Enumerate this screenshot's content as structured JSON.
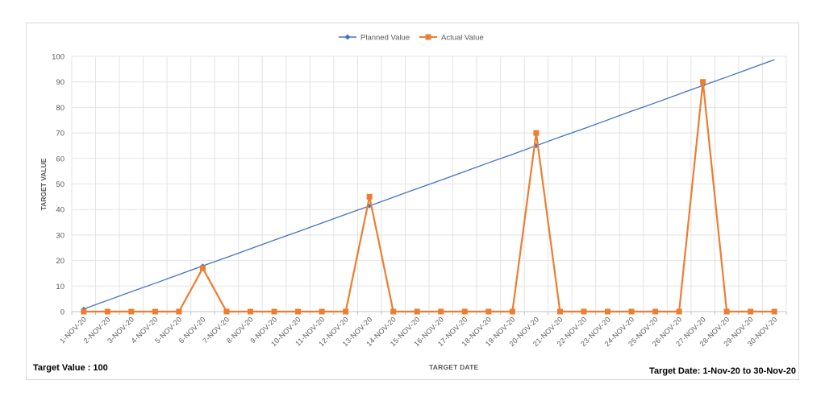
{
  "chart_data": {
    "type": "line",
    "title": "",
    "xlabel": "TARGET DATE",
    "ylabel": "TARGET  VALUE",
    "ylim": [
      0,
      100
    ],
    "yticks": [
      0,
      10,
      20,
      30,
      40,
      50,
      60,
      70,
      80,
      90,
      100
    ],
    "grid": true,
    "legend_position": "top",
    "categories": [
      "1-NOV-20",
      "2-NOV-20",
      "3-NOV-20",
      "4-NOV-20",
      "5-NOV-20",
      "6-NOV-20",
      "7-NOV-20",
      "8-NOV-20",
      "9-NOV-20",
      "10-NOV-20",
      "11-NOV-20",
      "12-NOV-20",
      "13-NOV-20",
      "14-NOV-20",
      "15-NOV-20",
      "16-NOV-20",
      "17-NOV-20",
      "18-NOV-20",
      "19-NOV-20",
      "20-NOV-20",
      "21-NOV-20",
      "22-NOV-20",
      "23-NOV-20",
      "24-NOV-20",
      "25-NOV-20",
      "26-NOV-20",
      "27-NOV-20",
      "28-NOV-20",
      "29-NOV-20",
      "30-NOV-20"
    ],
    "series": [
      {
        "name": "Planned Value",
        "color": "#4472c4",
        "marker": "diamond",
        "values": [
          1,
          4.4,
          7.8,
          11.1,
          14.5,
          17.9,
          21.2,
          24.6,
          28,
          31.3,
          34.7,
          38.1,
          41.4,
          44.8,
          48.2,
          51.5,
          54.9,
          58.3,
          61.6,
          65,
          68.4,
          71.7,
          75.1,
          78.5,
          81.8,
          85.2,
          88.6,
          91.9,
          95.3,
          98.7
        ]
      },
      {
        "name": "Actual Value",
        "color": "#ed7d31",
        "marker": "square",
        "values": [
          0,
          0,
          0,
          0,
          0,
          17,
          0,
          0,
          0,
          0,
          0,
          0,
          45,
          0,
          0,
          0,
          0,
          0,
          0,
          70,
          0,
          0,
          0,
          0,
          0,
          0,
          90,
          0,
          0,
          0
        ]
      }
    ],
    "annotations": {
      "target_value": "Target Value : 100",
      "target_date": "Target Date: 1-Nov-20 to 30-Nov-20"
    }
  }
}
